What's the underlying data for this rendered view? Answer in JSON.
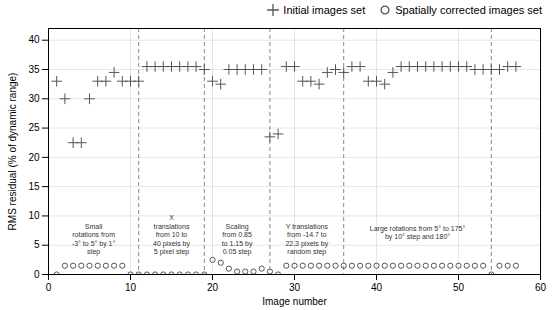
{
  "chart_data": {
    "type": "scatter",
    "xlabel": "Image number",
    "ylabel": "RMS residual (% of dynamic range)",
    "xlim": [
      0,
      60
    ],
    "ylim": [
      0,
      42
    ],
    "xticks": [
      0,
      10,
      20,
      30,
      40,
      50,
      60
    ],
    "yticks": [
      0,
      5,
      10,
      15,
      20,
      25,
      30,
      35,
      40
    ],
    "grid": true,
    "vlines": [
      11,
      19,
      27,
      36,
      54
    ],
    "annotations": [
      {
        "x": 5.5,
        "y": 3.5,
        "text": "Small\nrotations from\n-3° to 5° by 1°\nstep"
      },
      {
        "x": 15,
        "y": 3.5,
        "text": "X\ntranslations\nfrom 10 to\n40 pixels by\n5 pixel step"
      },
      {
        "x": 23,
        "y": 3.5,
        "text": "Scaling\nfrom 0.85\nto 1.15 by\n0.05 step"
      },
      {
        "x": 31.5,
        "y": 3.5,
        "text": "Y translations\nfrom -14.7 to\n22.3 pixels by\nrandom step"
      },
      {
        "x": 45,
        "y": 6,
        "text": "Large rotations from 5° to 175°\nby 10° step and 180°"
      }
    ],
    "series": [
      {
        "name": "Initial images set",
        "color": "#555555",
        "marker": "plus",
        "x": [
          1,
          2,
          3,
          4,
          5,
          6,
          7,
          8,
          9,
          10,
          11,
          12,
          13,
          14,
          15,
          16,
          17,
          18,
          19,
          20,
          21,
          22,
          23,
          24,
          25,
          26,
          27,
          28,
          29,
          30,
          31,
          32,
          33,
          34,
          35,
          36,
          37,
          38,
          39,
          40,
          41,
          42,
          43,
          44,
          45,
          46,
          47,
          48,
          49,
          50,
          51,
          52,
          53,
          54,
          55,
          56,
          57
        ],
        "values": [
          33,
          30,
          22.5,
          22.5,
          30,
          33,
          33,
          34.5,
          33,
          33,
          33,
          35.5,
          35.5,
          35.5,
          35.5,
          35.5,
          35.5,
          35.5,
          35,
          33,
          32.5,
          35,
          35,
          35,
          35,
          35,
          23.5,
          24,
          35.5,
          35.5,
          33,
          33,
          32.5,
          34.5,
          35,
          34.5,
          35.5,
          35.5,
          33,
          33,
          32.5,
          34.5,
          35.5,
          35.5,
          35.5,
          35.5,
          35.5,
          35.5,
          35.5,
          35.5,
          35.5,
          35,
          35,
          35,
          35,
          35.5,
          35.5
        ]
      },
      {
        "name": "Spatially corrected images set",
        "color": "#555555",
        "marker": "circle",
        "x": [
          1,
          2,
          3,
          4,
          5,
          6,
          7,
          8,
          9,
          10,
          11,
          12,
          13,
          14,
          15,
          16,
          17,
          18,
          19,
          20,
          21,
          22,
          23,
          24,
          25,
          26,
          27,
          28,
          29,
          30,
          31,
          32,
          33,
          34,
          35,
          36,
          37,
          38,
          39,
          40,
          41,
          42,
          43,
          44,
          45,
          46,
          47,
          48,
          49,
          50,
          51,
          52,
          53,
          54,
          55,
          56,
          57
        ],
        "values": [
          0,
          1.5,
          1.5,
          1.5,
          1.5,
          1.5,
          1.5,
          1.5,
          1.5,
          0,
          0,
          0,
          0,
          0,
          0,
          0,
          0,
          0,
          0,
          2.5,
          2,
          1,
          0.5,
          0.5,
          0.5,
          1,
          0.5,
          0,
          1.5,
          1.5,
          1.5,
          1.5,
          1.5,
          1.5,
          1.5,
          1.5,
          1.5,
          1.5,
          1.5,
          1.5,
          1.5,
          1.5,
          1.5,
          1.5,
          1.5,
          1.5,
          1.5,
          1.5,
          1.5,
          1.5,
          1.5,
          1.5,
          1.5,
          0,
          1.5,
          1.5,
          1.5
        ]
      }
    ]
  }
}
